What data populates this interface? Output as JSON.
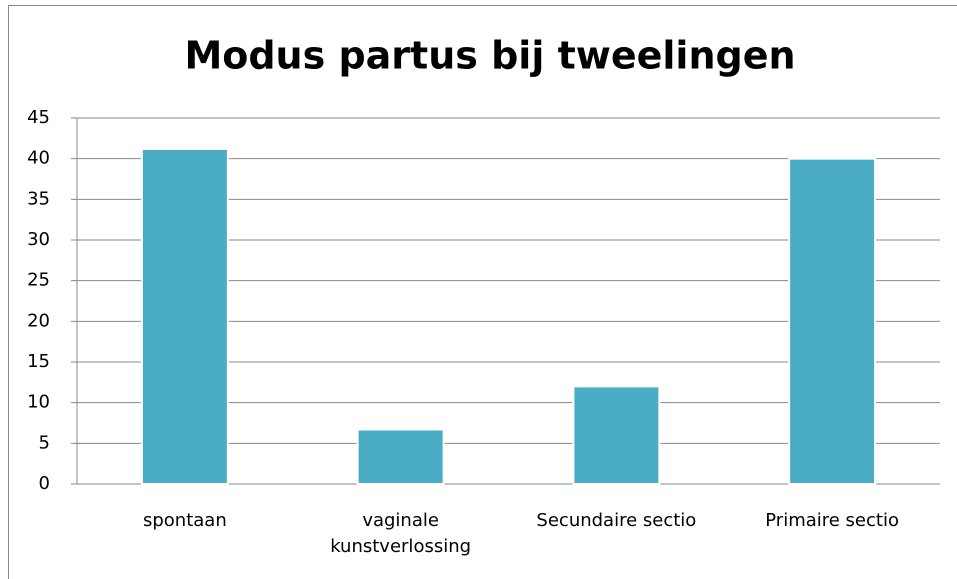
{
  "chart_data": {
    "type": "bar",
    "title": "Modus partus bij tweelingen",
    "categories": [
      "spontaan",
      "vaginale kunstverlossing",
      "Secundaire sectio",
      "Primaire sectio"
    ],
    "values": [
      41.2,
      6.7,
      12,
      40
    ],
    "color": "#4bacc6",
    "ylim": [
      0,
      45
    ],
    "yticks": [
      0,
      5,
      10,
      15,
      20,
      25,
      30,
      35,
      40,
      45
    ],
    "grid": true
  }
}
